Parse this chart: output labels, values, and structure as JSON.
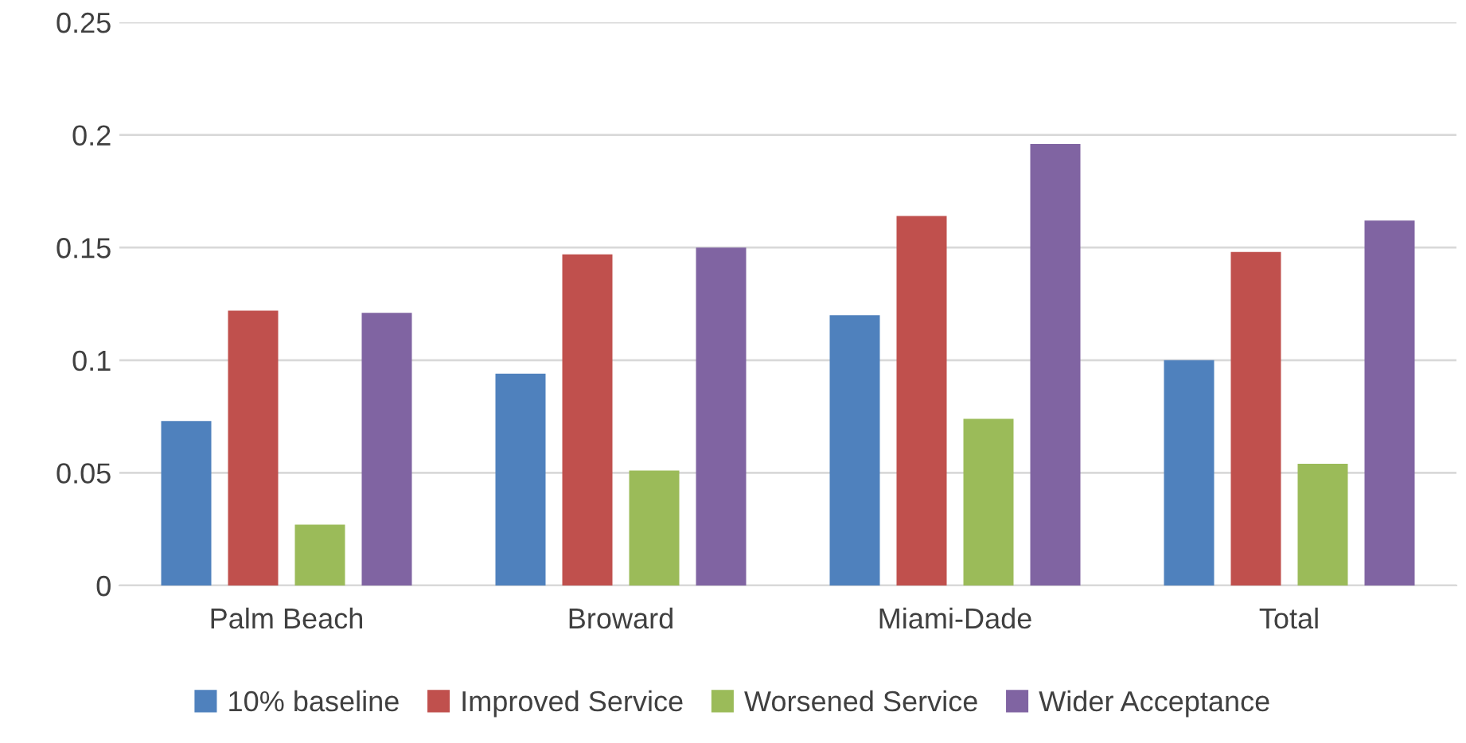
{
  "chart_data": {
    "type": "bar",
    "categories": [
      "Palm Beach",
      "Broward",
      "Miami-Dade",
      "Total"
    ],
    "series": [
      {
        "name": "10% baseline",
        "color": "#4f81bd",
        "values": [
          0.073,
          0.094,
          0.12,
          0.1
        ]
      },
      {
        "name": "Improved Service",
        "color": "#c0504d",
        "values": [
          0.122,
          0.147,
          0.164,
          0.148
        ]
      },
      {
        "name": "Worsened Service",
        "color": "#9bbb59",
        "values": [
          0.027,
          0.051,
          0.074,
          0.054
        ]
      },
      {
        "name": "Wider Acceptance",
        "color": "#8064a2",
        "values": [
          0.121,
          0.15,
          0.196,
          0.162
        ]
      }
    ],
    "ylim": [
      0,
      0.25
    ],
    "yticks": [
      0,
      0.05,
      0.1,
      0.15,
      0.2,
      0.25
    ],
    "grid": "y",
    "legend": "bottom"
  }
}
